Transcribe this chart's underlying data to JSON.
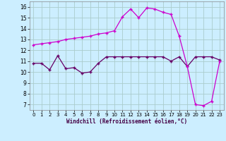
{
  "xlabel": "Windchill (Refroidissement éolien,°C)",
  "bg_color": "#cceeff",
  "grid_color": "#aacccc",
  "line_color1": "#cc00cc",
  "line_color2": "#660066",
  "xlim": [
    -0.5,
    23.5
  ],
  "ylim": [
    6.5,
    16.5
  ],
  "yticks": [
    7,
    8,
    9,
    10,
    11,
    12,
    13,
    14,
    15,
    16
  ],
  "xticks": [
    0,
    1,
    2,
    3,
    4,
    5,
    6,
    7,
    8,
    9,
    10,
    11,
    12,
    13,
    14,
    15,
    16,
    17,
    18,
    19,
    20,
    21,
    22,
    23
  ],
  "curve1_x": [
    0,
    1,
    2,
    3,
    4,
    5,
    6,
    7,
    8,
    9,
    10,
    11,
    12,
    13,
    14,
    15,
    16,
    17,
    18,
    19,
    20,
    21,
    22,
    23
  ],
  "curve1_y": [
    12.5,
    12.6,
    12.7,
    12.8,
    13.0,
    13.1,
    13.2,
    13.3,
    13.5,
    13.6,
    13.8,
    15.1,
    15.8,
    15.0,
    15.9,
    15.8,
    15.5,
    15.3,
    13.3,
    10.5,
    7.0,
    6.9,
    7.3,
    11.0
  ],
  "curve2_x": [
    0,
    1,
    2,
    3,
    4,
    5,
    6,
    7,
    8,
    9,
    10,
    11,
    12,
    13,
    14,
    15,
    16,
    17,
    18,
    19,
    20,
    21,
    22,
    23
  ],
  "curve2_y": [
    10.8,
    10.8,
    10.2,
    11.5,
    10.3,
    10.4,
    9.9,
    10.0,
    10.8,
    11.4,
    11.4,
    11.4,
    11.4,
    11.4,
    11.4,
    11.4,
    11.4,
    11.0,
    11.4,
    10.5,
    11.4,
    11.4,
    11.4,
    11.1
  ],
  "marker": "+",
  "markersize": 3.5,
  "linewidth": 0.9
}
